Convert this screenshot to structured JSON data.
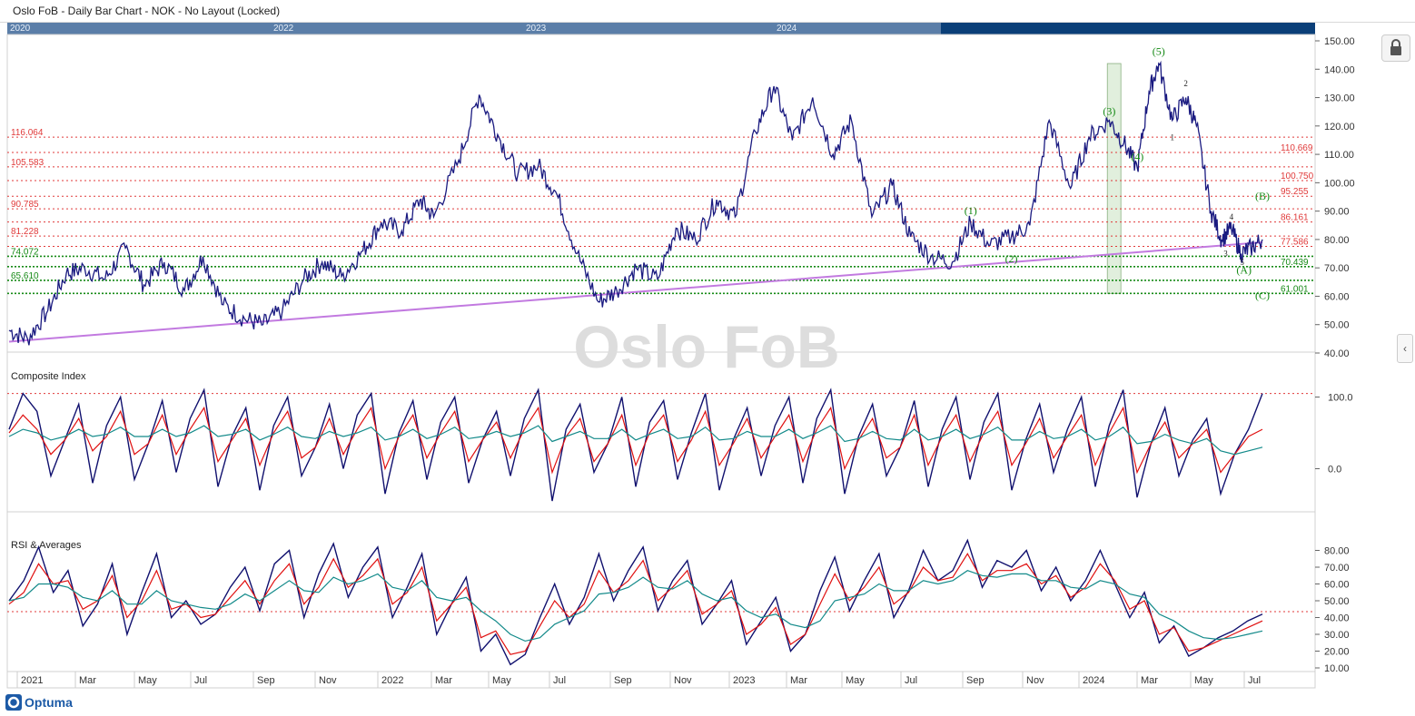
{
  "title": "Oslo FoB - Daily Bar Chart - NOK - No Layout (Locked)",
  "navigator": {
    "years": [
      "2020",
      "2022",
      "2023",
      "2024"
    ]
  },
  "watermark": "Oslo FoB",
  "brand": "Optuma",
  "colors": {
    "price": "#1a1a80",
    "trendline": "#c27ae0",
    "fib_red": "#e03a3a",
    "fib_green": "#168a16",
    "wave": "#168a16",
    "composite": "#10106e",
    "fast_avg": "#e01010",
    "slow_avg": "#138a8a",
    "highlight_fill": "#d7ead2",
    "watermark": "#dddddd"
  },
  "panels": {
    "composite_title": "Composite Index",
    "rsi_title": "RSI & Averages"
  },
  "chart_data": [
    {
      "type": "line",
      "panel": "price",
      "ylim": [
        40,
        150
      ],
      "y_ticks": [
        "150.00",
        "140.00",
        "130.00",
        "120.00",
        "110.00",
        "100.00",
        "90.00",
        "80.00",
        "70.00",
        "60.00",
        "50.00",
        "40.00"
      ],
      "x_labels": [
        "2021",
        "Mar",
        "May",
        "Jul",
        "Sep",
        "Nov",
        "2022",
        "Mar",
        "May",
        "Jul",
        "Sep",
        "Nov",
        "2023",
        "Mar",
        "May",
        "Jul",
        "Sep",
        "Nov",
        "2024",
        "Mar",
        "May",
        "Jul"
      ],
      "x_domain": [
        "2021-01-01",
        "2024-07-17"
      ],
      "series": [
        {
          "values": [
            [
              "2021-01-01",
              48
            ],
            [
              "2021-01-20",
              45
            ],
            [
              "2021-02-10",
              55
            ],
            [
              "2021-03-01",
              68
            ],
            [
              "2021-03-20",
              70
            ],
            [
              "2021-04-10",
              66
            ],
            [
              "2021-05-01",
              77
            ],
            [
              "2021-05-20",
              64
            ],
            [
              "2021-06-10",
              72
            ],
            [
              "2021-07-01",
              62
            ],
            [
              "2021-07-20",
              74
            ],
            [
              "2021-08-10",
              57
            ],
            [
              "2021-09-01",
              52
            ],
            [
              "2021-09-20",
              50
            ],
            [
              "2021-10-10",
              55
            ],
            [
              "2021-11-01",
              66
            ],
            [
              "2021-11-20",
              72
            ],
            [
              "2021-12-10",
              67
            ],
            [
              "2022-01-01",
              76
            ],
            [
              "2022-01-20",
              86
            ],
            [
              "2022-02-10",
              83
            ],
            [
              "2022-03-01",
              94
            ],
            [
              "2022-03-15",
              88
            ],
            [
              "2022-04-10",
              108
            ],
            [
              "2022-05-01",
              131
            ],
            [
              "2022-05-20",
              117
            ],
            [
              "2022-06-10",
              103
            ],
            [
              "2022-07-01",
              106
            ],
            [
              "2022-07-20",
              96
            ],
            [
              "2022-08-10",
              75
            ],
            [
              "2022-09-01",
              58
            ],
            [
              "2022-09-20",
              62
            ],
            [
              "2022-10-10",
              70
            ],
            [
              "2022-11-01",
              66
            ],
            [
              "2022-11-20",
              84
            ],
            [
              "2022-12-10",
              80
            ],
            [
              "2023-01-01",
              94
            ],
            [
              "2023-01-20",
              88
            ],
            [
              "2023-02-10",
              118
            ],
            [
              "2023-03-01",
              134
            ],
            [
              "2023-03-20",
              115
            ],
            [
              "2023-04-10",
              130
            ],
            [
              "2023-05-01",
              110
            ],
            [
              "2023-05-20",
              122
            ],
            [
              "2023-06-10",
              88
            ],
            [
              "2023-07-01",
              99
            ],
            [
              "2023-07-20",
              81
            ],
            [
              "2023-08-10",
              74
            ],
            [
              "2023-09-01",
              72
            ],
            [
              "2023-09-20",
              86
            ],
            [
              "2023-10-10",
              78
            ],
            [
              "2023-11-01",
              81
            ],
            [
              "2023-11-20",
              85
            ],
            [
              "2023-12-10",
              122
            ],
            [
              "2024-01-01",
              98
            ],
            [
              "2024-01-20",
              116
            ],
            [
              "2024-02-10",
              122
            ],
            [
              "2024-02-25",
              114
            ],
            [
              "2024-03-10",
              105
            ],
            [
              "2024-03-22",
              132
            ],
            [
              "2024-04-01",
              142
            ],
            [
              "2024-04-15",
              122
            ],
            [
              "2024-04-29",
              130
            ],
            [
              "2024-05-10",
              120
            ],
            [
              "2024-05-25",
              90
            ],
            [
              "2024-06-05",
              80
            ],
            [
              "2024-06-15",
              84
            ],
            [
              "2024-06-25",
              75
            ],
            [
              "2024-07-05",
              77
            ],
            [
              "2024-07-17",
              80
            ]
          ]
        },
        {
          "name": "trendline",
          "values": [
            [
              "2021-01-01",
              44
            ],
            [
              "2024-07-17",
              79
            ]
          ]
        }
      ],
      "fib_levels": [
        {
          "label": "116.064",
          "value": 116.064,
          "color": "red",
          "side": "left"
        },
        {
          "label": "110.669",
          "value": 110.669,
          "color": "red",
          "side": "right"
        },
        {
          "label": "105.583",
          "value": 105.583,
          "color": "red",
          "side": "left"
        },
        {
          "label": "100.750",
          "value": 100.75,
          "color": "red",
          "side": "right"
        },
        {
          "label": "95.255",
          "value": 95.255,
          "color": "red",
          "side": "right"
        },
        {
          "label": "90.785",
          "value": 90.785,
          "color": "red",
          "side": "left"
        },
        {
          "label": "86.161",
          "value": 86.161,
          "color": "red",
          "side": "right"
        },
        {
          "label": "81.228",
          "value": 81.228,
          "color": "red",
          "side": "left"
        },
        {
          "label": "77.586",
          "value": 77.586,
          "color": "red",
          "side": "right"
        },
        {
          "label": "74.072",
          "value": 74.072,
          "color": "green",
          "side": "left"
        },
        {
          "label": "70.439",
          "value": 70.439,
          "color": "green",
          "side": "right"
        },
        {
          "label": "65.610",
          "value": 65.61,
          "color": "green",
          "side": "left"
        },
        {
          "label": "61.001",
          "value": 61.001,
          "color": "green",
          "side": "right"
        }
      ],
      "wave_labels": [
        {
          "text": "(1)",
          "x": "2023-09-20",
          "y": 89,
          "color": "green"
        },
        {
          "text": "(2)",
          "x": "2023-11-01",
          "y": 72,
          "color": "green"
        },
        {
          "text": "(3)",
          "x": "2024-02-10",
          "y": 124,
          "color": "green"
        },
        {
          "text": "(4)",
          "x": "2024-03-10",
          "y": 108,
          "color": "green"
        },
        {
          "text": "(5)",
          "x": "2024-04-01",
          "y": 145,
          "color": "green"
        },
        {
          "text": "(B)",
          "x": "2024-07-17",
          "y": 94,
          "color": "green"
        },
        {
          "text": "(A)",
          "x": "2024-06-28",
          "y": 68,
          "color": "green"
        },
        {
          "text": "(C)",
          "x": "2024-07-17",
          "y": 59,
          "color": "green"
        },
        {
          "text": "1",
          "x": "2024-04-15",
          "y": 115,
          "color": "black"
        },
        {
          "text": "2",
          "x": "2024-04-29",
          "y": 134,
          "color": "black"
        },
        {
          "text": "3",
          "x": "2024-06-09",
          "y": 74,
          "color": "black"
        },
        {
          "text": "4",
          "x": "2024-06-15",
          "y": 87,
          "color": "black"
        },
        {
          "text": "5",
          "x": "2024-06-26",
          "y": 71,
          "color": "black"
        }
      ],
      "highlight_zone": {
        "x_from": "2024-02-08",
        "x_to": "2024-02-22",
        "y_from": 61,
        "y_to": 142
      }
    },
    {
      "type": "line",
      "panel": "composite",
      "title": "Composite Index",
      "ylim": [
        -50,
        145
      ],
      "y_ticks": [
        "100.0",
        "0.0"
      ],
      "reference_line": 105,
      "series": [
        {
          "name": "",
          "values": [
            55,
            105,
            80,
            -10,
            40,
            90,
            -20,
            60,
            100,
            -15,
            35,
            95,
            -5,
            70,
            110,
            -25,
            45,
            85,
            -30,
            60,
            100,
            -10,
            30,
            90,
            0,
            75,
            105,
            -35,
            50,
            95,
            -15,
            65,
            100,
            -20,
            40,
            80,
            -10,
            70,
            110,
            -45,
            55,
            90,
            -5,
            35,
            100,
            -25,
            65,
            95,
            -15,
            50,
            105,
            -30,
            40,
            85,
            -10,
            60,
            100,
            -20,
            70,
            110,
            -35,
            45,
            90,
            -10,
            30,
            95,
            -25,
            55,
            100,
            -15,
            65,
            105,
            -30,
            40,
            90,
            -5,
            55,
            100,
            -25,
            60,
            110,
            -40,
            35,
            85,
            -10,
            40,
            70,
            -35,
            20,
            55,
            105
          ]
        },
        {
          "name": "",
          "values": [
            50,
            75,
            55,
            20,
            40,
            70,
            25,
            45,
            80,
            20,
            35,
            75,
            20,
            55,
            85,
            10,
            40,
            70,
            5,
            50,
            80,
            15,
            30,
            70,
            20,
            55,
            85,
            0,
            45,
            75,
            15,
            50,
            80,
            10,
            40,
            65,
            15,
            55,
            85,
            -5,
            45,
            70,
            10,
            35,
            75,
            5,
            50,
            75,
            10,
            40,
            80,
            5,
            35,
            70,
            15,
            45,
            75,
            10,
            55,
            85,
            0,
            40,
            70,
            15,
            30,
            75,
            5,
            45,
            75,
            10,
            50,
            80,
            5,
            35,
            70,
            15,
            45,
            75,
            5,
            50,
            85,
            -5,
            35,
            65,
            15,
            35,
            55,
            -5,
            20,
            45,
            55
          ]
        },
        {
          "name": "",
          "values": [
            45,
            55,
            50,
            40,
            45,
            55,
            45,
            48,
            58,
            45,
            45,
            55,
            45,
            50,
            60,
            45,
            48,
            55,
            40,
            48,
            58,
            45,
            42,
            52,
            45,
            50,
            58,
            40,
            45,
            55,
            42,
            48,
            58,
            42,
            45,
            52,
            45,
            50,
            60,
            38,
            45,
            52,
            42,
            42,
            55,
            40,
            48,
            55,
            42,
            45,
            58,
            40,
            42,
            52,
            45,
            45,
            55,
            42,
            50,
            60,
            38,
            42,
            52,
            42,
            40,
            55,
            40,
            45,
            55,
            42,
            48,
            58,
            40,
            40,
            52,
            42,
            45,
            55,
            40,
            45,
            58,
            35,
            38,
            48,
            40,
            35,
            42,
            25,
            20,
            25,
            30
          ]
        }
      ]
    },
    {
      "type": "line",
      "panel": "rsi",
      "title": "RSI & Averages",
      "ylim": [
        10,
        90
      ],
      "y_ticks": [
        "80.00",
        "70.00",
        "60.00",
        "50.00",
        "40.00",
        "30.00",
        "20.00",
        "10.00"
      ],
      "reference_line": 43.5,
      "series": [
        {
          "name": "",
          "values": [
            50,
            62,
            82,
            55,
            68,
            35,
            48,
            72,
            30,
            55,
            78,
            40,
            50,
            36,
            42,
            58,
            70,
            44,
            72,
            80,
            40,
            66,
            84,
            52,
            70,
            82,
            40,
            58,
            78,
            30,
            48,
            64,
            20,
            30,
            12,
            18,
            40,
            60,
            36,
            52,
            78,
            50,
            68,
            82,
            44,
            62,
            74,
            36,
            48,
            62,
            24,
            38,
            52,
            20,
            30,
            56,
            76,
            44,
            62,
            78,
            40,
            56,
            80,
            62,
            68,
            86,
            58,
            74,
            70,
            80,
            56,
            70,
            50,
            62,
            80,
            60,
            40,
            55,
            25,
            35,
            17,
            22,
            28,
            32,
            38,
            42
          ]
        },
        {
          "name": "",
          "values": [
            48,
            55,
            72,
            60,
            62,
            45,
            50,
            65,
            40,
            50,
            68,
            45,
            48,
            40,
            42,
            52,
            62,
            48,
            62,
            72,
            48,
            58,
            75,
            58,
            65,
            75,
            48,
            55,
            70,
            38,
            48,
            58,
            28,
            32,
            18,
            20,
            35,
            50,
            40,
            48,
            68,
            55,
            62,
            74,
            50,
            58,
            68,
            42,
            48,
            56,
            30,
            36,
            46,
            24,
            30,
            48,
            66,
            50,
            58,
            70,
            48,
            55,
            70,
            62,
            64,
            78,
            62,
            68,
            68,
            72,
            60,
            65,
            52,
            58,
            72,
            62,
            45,
            50,
            30,
            34,
            20,
            22,
            26,
            30,
            34,
            38
          ]
        },
        {
          "name": "",
          "values": [
            50,
            52,
            60,
            60,
            58,
            52,
            50,
            56,
            48,
            48,
            56,
            50,
            48,
            46,
            45,
            48,
            54,
            50,
            56,
            62,
            56,
            55,
            64,
            60,
            62,
            66,
            58,
            56,
            62,
            52,
            50,
            52,
            44,
            38,
            30,
            26,
            28,
            36,
            40,
            44,
            54,
            55,
            58,
            64,
            58,
            57,
            62,
            54,
            50,
            52,
            44,
            40,
            42,
            36,
            34,
            38,
            50,
            52,
            54,
            60,
            56,
            56,
            62,
            60,
            62,
            68,
            65,
            64,
            66,
            66,
            62,
            62,
            58,
            57,
            62,
            60,
            54,
            52,
            42,
            38,
            32,
            28,
            27,
            28,
            30,
            32
          ]
        }
      ]
    }
  ]
}
